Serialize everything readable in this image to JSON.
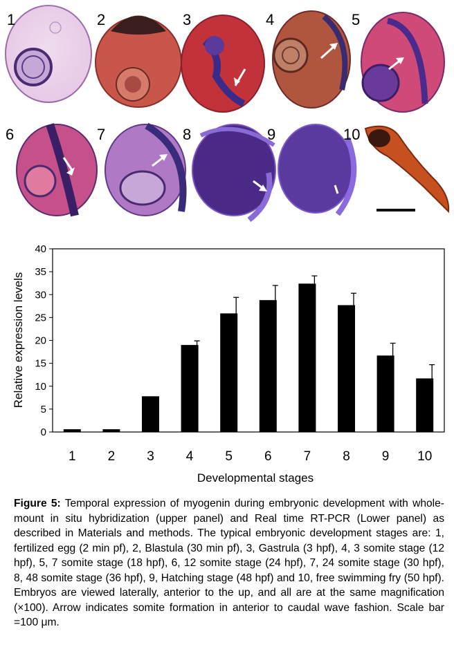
{
  "panels": [
    {
      "label": "1",
      "fill": "#e7c9e6",
      "edge": "#9a6aa8"
    },
    {
      "label": "2",
      "fill": "#c8564a",
      "edge": "#8a2e2a"
    },
    {
      "label": "3",
      "fill": "#c2323a",
      "edge": "#8b1f2a"
    },
    {
      "label": "4",
      "fill": "#b0553e",
      "edge": "#6e2a26"
    },
    {
      "label": "5",
      "fill": "#cf4a78",
      "edge": "#7a2a6a"
    },
    {
      "label": "6",
      "fill": "#c6508a",
      "edge": "#5e2a70"
    },
    {
      "label": "7",
      "fill": "#b079c6",
      "edge": "#5e3a8a"
    },
    {
      "label": "8",
      "fill": "#4a2a86",
      "edge": "#7a52c6"
    },
    {
      "label": "9",
      "fill": "#5b3aa0",
      "edge": "#7b5ad0"
    },
    {
      "label": "10",
      "fill": "#c65020",
      "edge": "#7a2a10"
    }
  ],
  "chart_data": {
    "type": "bar",
    "categories": [
      "1",
      "2",
      "3",
      "4",
      "5",
      "6",
      "7",
      "8",
      "9",
      "10"
    ],
    "values": [
      0.6,
      0.6,
      7.8,
      19.0,
      25.9,
      28.8,
      32.4,
      27.7,
      16.7,
      11.7
    ],
    "errors": [
      0,
      0,
      0,
      0.9,
      3.5,
      3.2,
      1.7,
      2.6,
      2.7,
      3.0
    ],
    "yticks": [
      "0",
      "5",
      "10",
      "15",
      "20",
      "25",
      "30",
      "35",
      "40"
    ],
    "ylim": [
      0,
      40
    ],
    "xlabel": "Developmental stages",
    "ylabel": "Relative expression levels",
    "bar_color": "#000000"
  },
  "caption": {
    "label": "Figure 5:",
    "text": " Temporal expression of myogenin during embryonic development with whole-mount in situ hybridization (upper panel) and Real time RT-PCR (Lower panel) as described in Materials and methods. The typical embryonic development stages are: 1, fertilized egg (2 min pf), 2, Blastula (30 min pf), 3, Gastrula (3 hpf), 4, 3 somite stage (12 hpf), 5, 7 somite stage (18 hpf), 6, 12 somite stage (24 hpf), 7, 24 somite stage (30 hpf), 8, 48 somite stage (36 hpf), 9, Hatching stage (48 hpf) and 10, free swimming fry (50 hpf). Embryos are viewed laterally, anterior to the up, and all are at the same magnification (×100). Arrow indicates somite formation in anterior to caudal wave fashion. Scale bar =100 μm."
  }
}
